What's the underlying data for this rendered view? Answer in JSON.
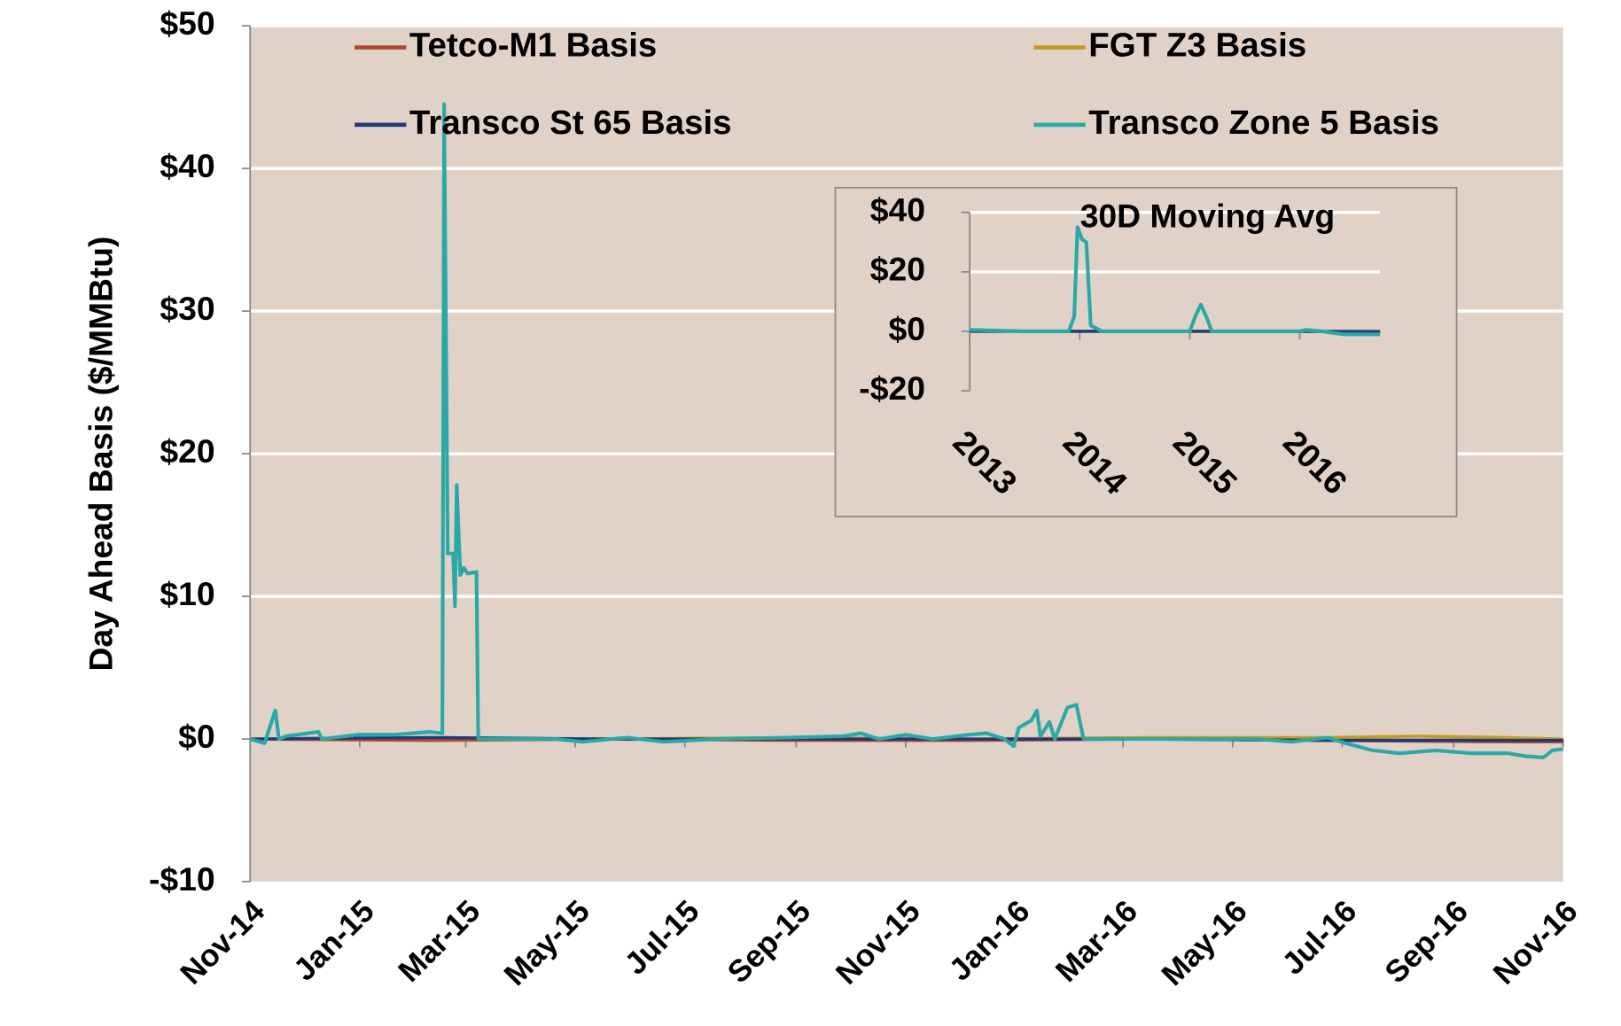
{
  "chart_data": [
    {
      "type": "line",
      "y_label": "Day Ahead Basis ($/MMBtu)",
      "legend": "top",
      "grid": true,
      "plot_background": "#e0d2c7",
      "xlim": [
        0,
        731
      ],
      "xticks": [
        {
          "value": 0,
          "label": "Nov-14"
        },
        {
          "value": 61,
          "label": "Jan-15"
        },
        {
          "value": 120,
          "label": "Mar-15"
        },
        {
          "value": 181,
          "label": "May-15"
        },
        {
          "value": 242,
          "label": "Jul-15"
        },
        {
          "value": 304,
          "label": "Sep-15"
        },
        {
          "value": 365,
          "label": "Nov-15"
        },
        {
          "value": 426,
          "label": "Jan-16"
        },
        {
          "value": 486,
          "label": "Mar-16"
        },
        {
          "value": 547,
          "label": "May-16"
        },
        {
          "value": 608,
          "label": "Jul-16"
        },
        {
          "value": 670,
          "label": "Sep-16"
        },
        {
          "value": 731,
          "label": "Nov-16"
        }
      ],
      "ylim": [
        -10,
        50
      ],
      "yticks": [
        {
          "value": -10,
          "label": "-$10"
        },
        {
          "value": 0,
          "label": "$0"
        },
        {
          "value": 10,
          "label": "$10"
        },
        {
          "value": 20,
          "label": "$20"
        },
        {
          "value": 30,
          "label": "$30"
        },
        {
          "value": 40,
          "label": "$40"
        },
        {
          "value": 50,
          "label": "$50"
        }
      ],
      "series": [
        {
          "name": "Tetco-M1 Basis",
          "color": "#b5462e",
          "x": [
            0,
            100,
            200,
            300,
            400,
            500,
            600,
            700,
            731
          ],
          "values": [
            0,
            -0.1,
            0,
            -0.1,
            -0.1,
            0,
            -0.1,
            -0.2,
            -0.2
          ]
        },
        {
          "name": "FGT Z3 Basis",
          "color": "#c79a1c",
          "x": [
            0,
            100,
            200,
            300,
            400,
            500,
            600,
            650,
            700,
            731
          ],
          "values": [
            0,
            0.1,
            0,
            0.1,
            0,
            0.1,
            0.1,
            0.2,
            0.1,
            0
          ]
        },
        {
          "name": "Transco St 65 Basis",
          "color": "#1f3a7a",
          "x": [
            0,
            100,
            200,
            300,
            400,
            500,
            600,
            700,
            731
          ],
          "values": [
            0,
            0.1,
            0,
            0,
            0,
            0,
            -0.1,
            -0.1,
            -0.1
          ]
        },
        {
          "name": "Transco Zone 5 Basis",
          "color": "#2aa8a8",
          "x": [
            0,
            8,
            14,
            16,
            20,
            38,
            40,
            60,
            80,
            100,
            107,
            108,
            110,
            113,
            114,
            115,
            117,
            119,
            121,
            126,
            127,
            140,
            170,
            185,
            210,
            230,
            260,
            300,
            330,
            340,
            350,
            365,
            380,
            400,
            410,
            420,
            425,
            428,
            435,
            438,
            440,
            445,
            448,
            455,
            460,
            464,
            480,
            520,
            560,
            580,
            600,
            610,
            625,
            640,
            660,
            680,
            700,
            710,
            720,
            725,
            731
          ],
          "values": [
            0,
            -0.3,
            2,
            0,
            0.2,
            0.5,
            0,
            0.3,
            0.3,
            0.5,
            0.4,
            44.5,
            13,
            13,
            9.3,
            17.8,
            11.5,
            12,
            11.6,
            11.7,
            0,
            0,
            0,
            -0.2,
            0.1,
            -0.2,
            0,
            0.1,
            0.2,
            0.4,
            0,
            0.3,
            0,
            0.3,
            0.4,
            0,
            -0.5,
            0.8,
            1.3,
            2,
            0.2,
            1.2,
            0,
            2.2,
            2.4,
            0,
            0,
            0,
            0,
            -0.2,
            0.1,
            -0.3,
            -0.8,
            -1,
            -0.8,
            -1,
            -1,
            -1.2,
            -1.3,
            -0.8,
            -0.7
          ]
        }
      ]
    },
    {
      "type": "line",
      "title": "30D Moving Avg",
      "grid": true,
      "plot_background": "#e0d2c7",
      "xlim": [
        2013,
        2016.73
      ],
      "xticks": [
        2013,
        2014,
        2015,
        2016
      ],
      "ylim": [
        -20,
        40
      ],
      "yticks": [
        {
          "value": -20,
          "label": "-$20"
        },
        {
          "value": 0,
          "label": "$0"
        },
        {
          "value": 20,
          "label": "$20"
        },
        {
          "value": 40,
          "label": "$40"
        }
      ],
      "series": [
        {
          "color": "#b5462e",
          "x": [
            2013,
            2014,
            2015,
            2016,
            2016.73
          ],
          "values": [
            0,
            0,
            0,
            0,
            -0.2
          ]
        },
        {
          "color": "#c79a1c",
          "x": [
            2013,
            2014,
            2015,
            2016,
            2016.73
          ],
          "values": [
            0,
            0,
            0,
            0,
            0
          ]
        },
        {
          "color": "#1f3a7a",
          "x": [
            2013,
            2014,
            2015,
            2016,
            2016.73
          ],
          "values": [
            0,
            0,
            0,
            0,
            -0.1
          ]
        },
        {
          "color": "#2aa8a8",
          "x": [
            2013,
            2013.5,
            2013.9,
            2013.95,
            2013.98,
            2014.02,
            2014.06,
            2014.1,
            2014.2,
            2015,
            2015.05,
            2015.1,
            2015.15,
            2015.2,
            2016,
            2016.05,
            2016.2,
            2016.4,
            2016.73
          ],
          "values": [
            0.5,
            0,
            0,
            5,
            35,
            31,
            30,
            2,
            0,
            0,
            5,
            9,
            5,
            0,
            0,
            0.5,
            0,
            -1,
            -1
          ]
        }
      ]
    }
  ]
}
